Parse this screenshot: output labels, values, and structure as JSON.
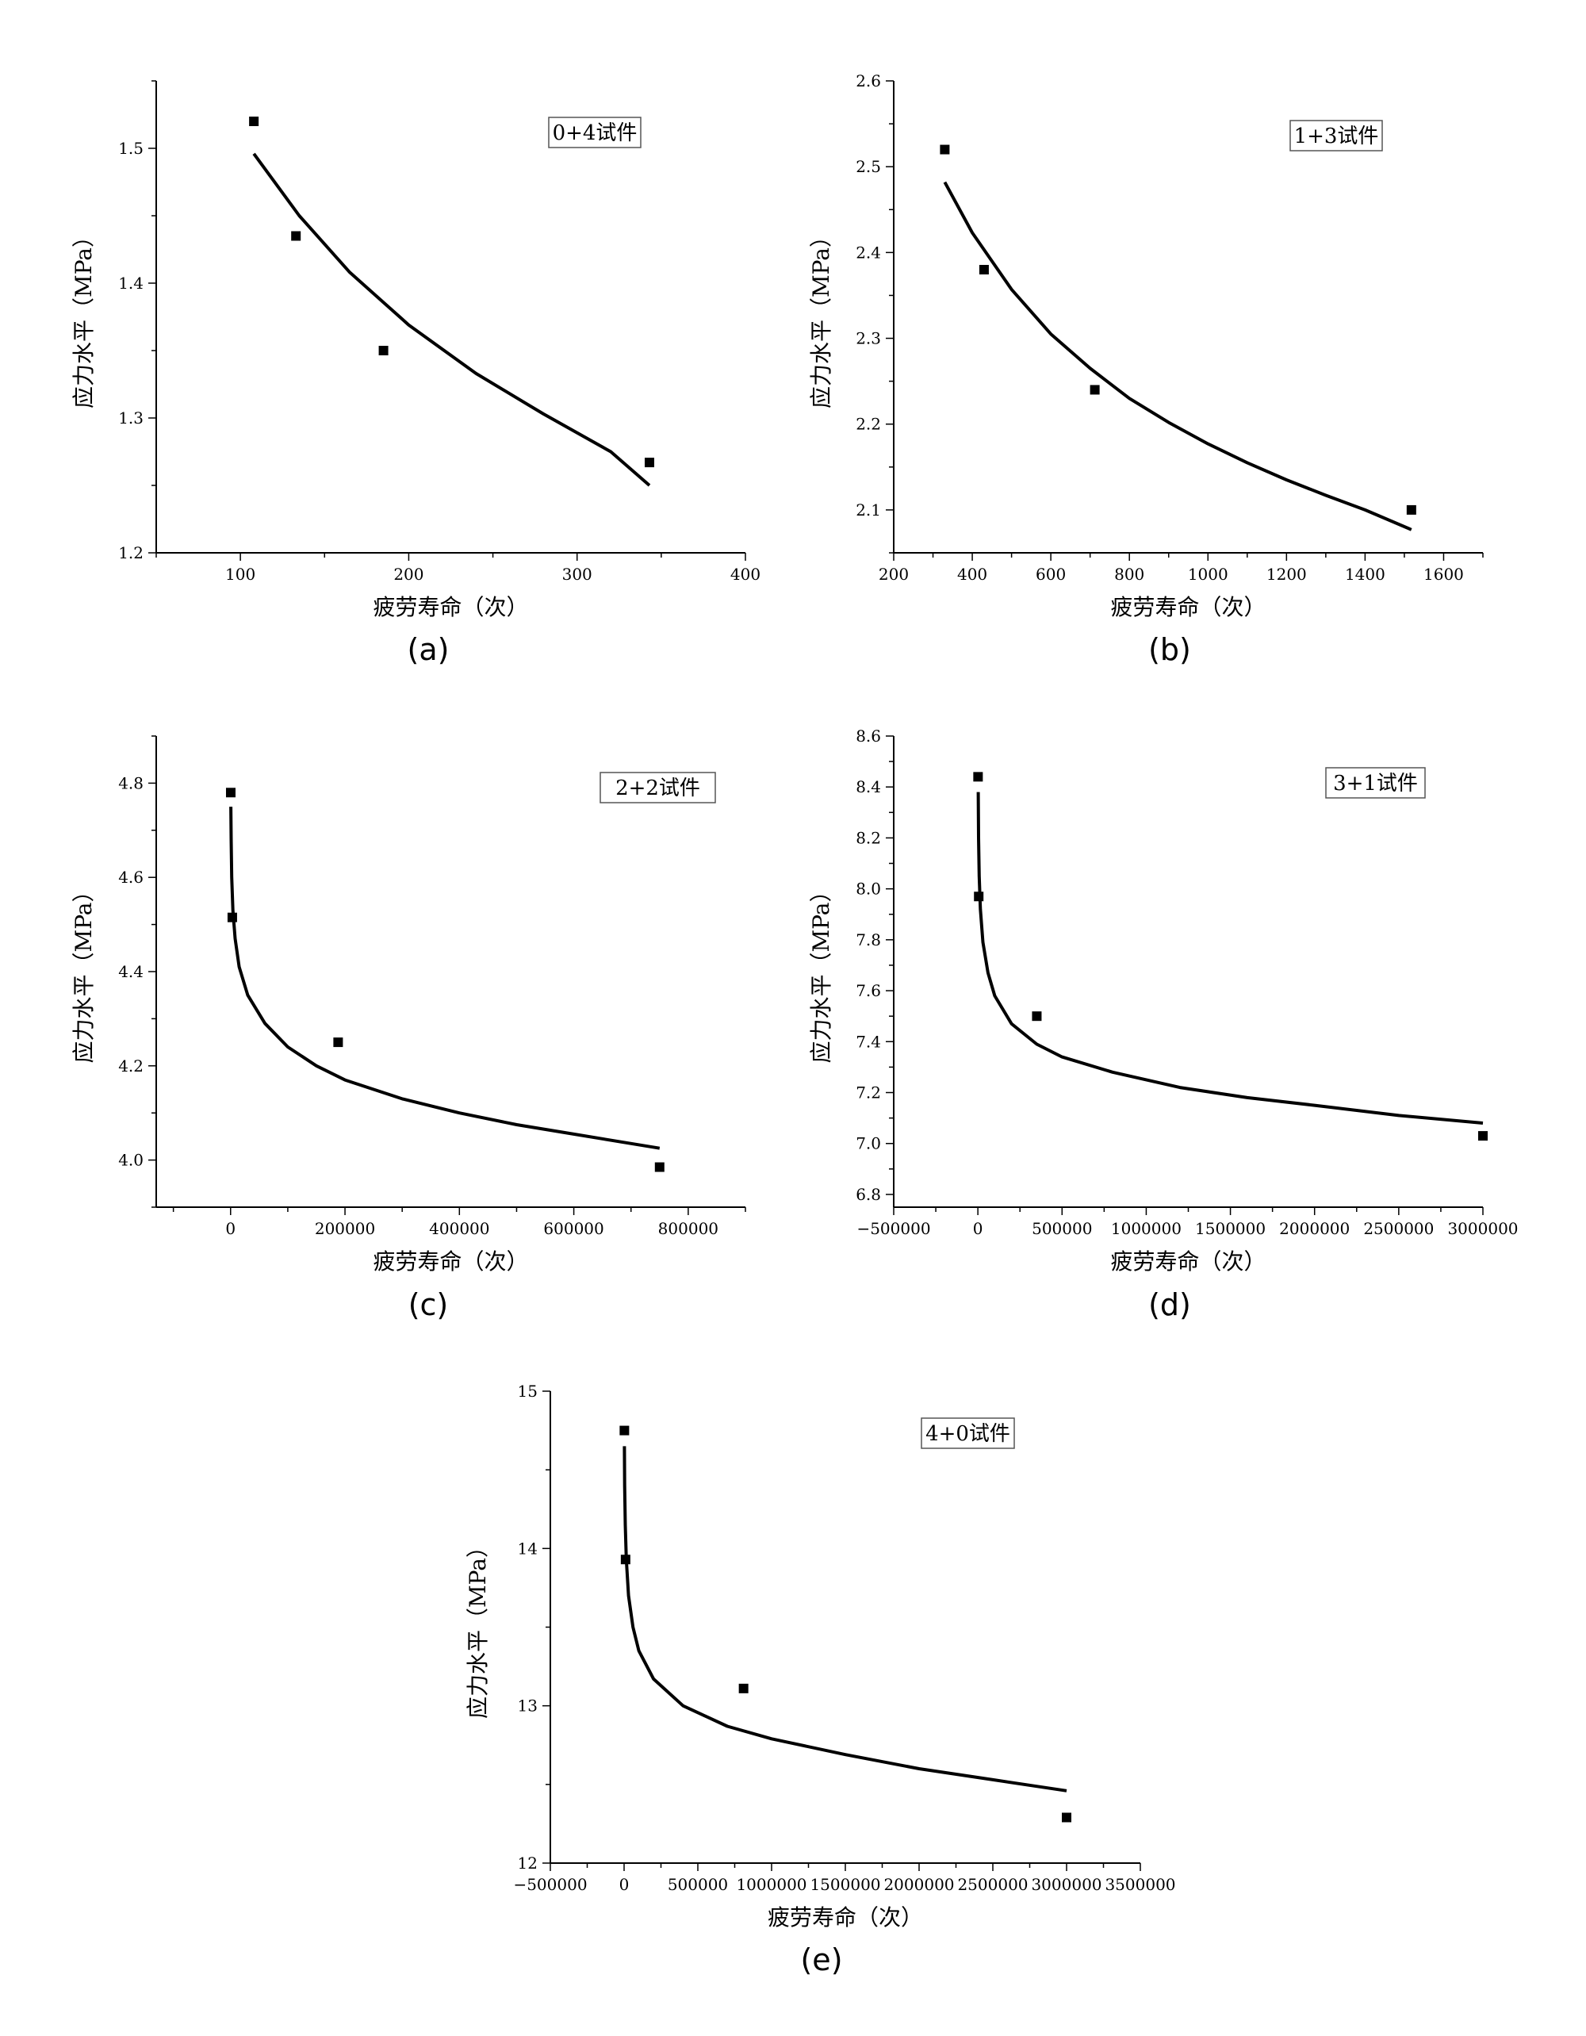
{
  "chart_data": [
    {
      "type": "scatter",
      "caption": "(a)",
      "annotation": "0+4试件",
      "xlabel": "疲劳寿命（次）",
      "ylabel": "应力水平（MPa）",
      "xlim": [
        50,
        400
      ],
      "ylim": [
        1.2,
        1.55
      ],
      "xticks": [
        100,
        200,
        300,
        400
      ],
      "xtick_labels": [
        "100",
        "200",
        "300",
        "400"
      ],
      "yticks": [
        1.2,
        1.3,
        1.4,
        1.5
      ],
      "ytick_labels": [
        "1.2",
        "1.3",
        "1.4",
        "1.5"
      ],
      "points": [
        [
          108,
          1.52
        ],
        [
          133,
          1.435
        ],
        [
          185,
          1.35
        ],
        [
          343,
          1.267
        ]
      ],
      "fit_curve": [
        [
          108,
          1.496
        ],
        [
          135,
          1.45
        ],
        [
          165,
          1.408
        ],
        [
          200,
          1.369
        ],
        [
          240,
          1.333
        ],
        [
          280,
          1.303
        ],
        [
          320,
          1.275
        ],
        [
          343,
          1.25
        ]
      ]
    },
    {
      "type": "scatter",
      "caption": "(b)",
      "annotation": "1+3试件",
      "xlabel": "疲劳寿命（次）",
      "ylabel": "应力水平（MPa）",
      "xlim": [
        200,
        1700
      ],
      "ylim": [
        2.05,
        2.6
      ],
      "xticks": [
        200,
        400,
        600,
        800,
        1000,
        1200,
        1400,
        1600
      ],
      "xtick_labels": [
        "200",
        "400",
        "600",
        "800",
        "1000",
        "1200",
        "1400",
        "1600"
      ],
      "yticks": [
        2.1,
        2.2,
        2.3,
        2.4,
        2.5,
        2.6
      ],
      "ytick_labels": [
        "2.1",
        "2.2",
        "2.3",
        "2.4",
        "2.5",
        "2.6"
      ],
      "points": [
        [
          330,
          2.52
        ],
        [
          430,
          2.38
        ],
        [
          712,
          2.24
        ],
        [
          1518,
          2.1
        ]
      ],
      "fit_curve": [
        [
          330,
          2.482
        ],
        [
          400,
          2.423
        ],
        [
          500,
          2.357
        ],
        [
          600,
          2.305
        ],
        [
          700,
          2.265
        ],
        [
          800,
          2.23
        ],
        [
          900,
          2.202
        ],
        [
          1000,
          2.177
        ],
        [
          1100,
          2.155
        ],
        [
          1200,
          2.135
        ],
        [
          1300,
          2.117
        ],
        [
          1400,
          2.1
        ],
        [
          1518,
          2.077
        ]
      ]
    },
    {
      "type": "scatter",
      "caption": "(c)",
      "annotation": "2+2试件",
      "xlabel": "疲劳寿命（次）",
      "ylabel": "应力水平（MPa）",
      "xlim": [
        -130000,
        900000
      ],
      "ylim": [
        3.9,
        4.9
      ],
      "xticks": [
        0,
        200000,
        400000,
        600000,
        800000
      ],
      "xtick_labels": [
        "0",
        "200000",
        "400000",
        "600000",
        "800000"
      ],
      "yticks": [
        4.0,
        4.2,
        4.4,
        4.6,
        4.8
      ],
      "ytick_labels": [
        "4.0",
        "4.2",
        "4.4",
        "4.6",
        "4.8"
      ],
      "points": [
        [
          300,
          4.78
        ],
        [
          3000,
          4.515
        ],
        [
          188000,
          4.25
        ],
        [
          750000,
          3.985
        ]
      ],
      "fit_curve": [
        [
          500,
          4.75
        ],
        [
          1000,
          4.68
        ],
        [
          2000,
          4.6
        ],
        [
          4000,
          4.53
        ],
        [
          8000,
          4.47
        ],
        [
          15000,
          4.41
        ],
        [
          30000,
          4.35
        ],
        [
          60000,
          4.29
        ],
        [
          100000,
          4.24
        ],
        [
          150000,
          4.2
        ],
        [
          200000,
          4.17
        ],
        [
          300000,
          4.13
        ],
        [
          400000,
          4.1
        ],
        [
          500000,
          4.075
        ],
        [
          600000,
          4.055
        ],
        [
          750000,
          4.025
        ]
      ]
    },
    {
      "type": "scatter",
      "caption": "(d)",
      "annotation": "3+1试件",
      "xlabel": "疲劳寿命（次）",
      "ylabel": "应力水平（MPa）",
      "xlim": [
        -500000,
        3000000
      ],
      "ylim": [
        6.75,
        8.6
      ],
      "xticks": [
        -500000,
        0,
        500000,
        1000000,
        1500000,
        2000000,
        2500000,
        3000000
      ],
      "xtick_labels": [
        "−500000",
        "0",
        "500000",
        "1000000",
        "1500000",
        "2000000",
        "2500000",
        "3000000"
      ],
      "yticks": [
        6.8,
        7.0,
        7.2,
        7.4,
        7.6,
        7.8,
        8.0,
        8.2,
        8.4,
        8.6
      ],
      "ytick_labels": [
        "6.8",
        "7.0",
        "7.2",
        "7.4",
        "7.6",
        "7.8",
        "8.0",
        "8.2",
        "8.4",
        "8.6"
      ],
      "points": [
        [
          1000,
          8.44
        ],
        [
          5000,
          7.97
        ],
        [
          350000,
          7.5
        ],
        [
          3000000,
          7.03
        ]
      ],
      "fit_curve": [
        [
          2000,
          8.38
        ],
        [
          4000,
          8.2
        ],
        [
          8000,
          8.05
        ],
        [
          15000,
          7.92
        ],
        [
          30000,
          7.79
        ],
        [
          60000,
          7.67
        ],
        [
          100000,
          7.58
        ],
        [
          200000,
          7.47
        ],
        [
          350000,
          7.39
        ],
        [
          500000,
          7.34
        ],
        [
          800000,
          7.28
        ],
        [
          1200000,
          7.22
        ],
        [
          1600000,
          7.18
        ],
        [
          2000000,
          7.15
        ],
        [
          2500000,
          7.11
        ],
        [
          3000000,
          7.08
        ]
      ]
    },
    {
      "type": "scatter",
      "caption": "(e)",
      "annotation": "4+0试件",
      "xlabel": "疲劳寿命（次）",
      "ylabel": "应力水平（MPa）",
      "xlim": [
        -500000,
        3500000
      ],
      "ylim": [
        12,
        15
      ],
      "xticks": [
        -500000,
        0,
        500000,
        1000000,
        1500000,
        2000000,
        2500000,
        3000000,
        3500000
      ],
      "xtick_labels": [
        "−500000",
        "0",
        "500000",
        "1000000",
        "1500000",
        "2000000",
        "2500000",
        "3000000",
        "3500000"
      ],
      "yticks": [
        12,
        13,
        14,
        15
      ],
      "ytick_labels": [
        "12",
        "13",
        "14",
        "15"
      ],
      "points": [
        [
          2000,
          14.75
        ],
        [
          10000,
          13.93
        ],
        [
          810000,
          13.11
        ],
        [
          3000000,
          12.29
        ]
      ],
      "fit_curve": [
        [
          2000,
          14.65
        ],
        [
          4000,
          14.4
        ],
        [
          8000,
          14.15
        ],
        [
          15000,
          13.93
        ],
        [
          30000,
          13.7
        ],
        [
          60000,
          13.5
        ],
        [
          100000,
          13.35
        ],
        [
          200000,
          13.17
        ],
        [
          400000,
          13.0
        ],
        [
          700000,
          12.87
        ],
        [
          1000000,
          12.79
        ],
        [
          1500000,
          12.69
        ],
        [
          2000000,
          12.6
        ],
        [
          2500000,
          12.53
        ],
        [
          3000000,
          12.46
        ]
      ]
    }
  ]
}
